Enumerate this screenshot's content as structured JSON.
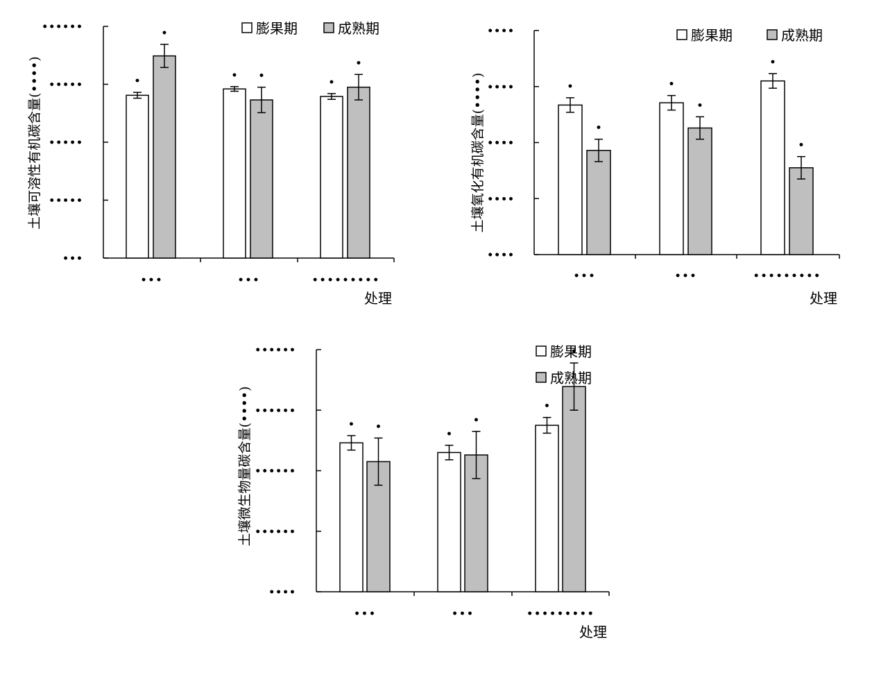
{
  "chart_data": [
    {
      "type": "bar",
      "title": "",
      "xlabel": "处理",
      "ylabel": "土壤可溶性有机碳含量(••••)",
      "ylim": [
        0,
        4
      ],
      "yticks": [
        0,
        1,
        2,
        3,
        4
      ],
      "ytick_labels": [
        "•••",
        "•••••",
        "•••••",
        "•••••",
        "••••••"
      ],
      "categories": [
        "•••",
        "•••",
        "•••••••••"
      ],
      "legend": "top-right",
      "series": [
        {
          "name": "膨果期",
          "color": "#ffffff",
          "values": [
            2.81,
            2.92,
            2.79
          ],
          "errors": [
            0.05,
            0.04,
            0.05
          ],
          "labels": [
            "•",
            "•",
            "•"
          ]
        },
        {
          "name": "成熟期",
          "color": "#bfbfbf",
          "values": [
            3.49,
            2.73,
            2.95
          ],
          "errors": [
            0.2,
            0.22,
            0.22
          ],
          "labels": [
            "•",
            "•",
            "•"
          ]
        }
      ]
    },
    {
      "type": "bar",
      "title": "",
      "xlabel": "处理",
      "ylabel": "土壤氧化有机碳含量(••••)",
      "ylim": [
        0,
        4
      ],
      "yticks": [
        0,
        1,
        2,
        3,
        4
      ],
      "ytick_labels": [
        "••••",
        "••••",
        "••••",
        "••••",
        "••••"
      ],
      "categories": [
        "•••",
        "•••",
        "•••••••••"
      ],
      "legend": "top-right",
      "series": [
        {
          "name": "膨果期",
          "color": "#ffffff",
          "values": [
            2.67,
            2.71,
            3.1
          ],
          "errors": [
            0.13,
            0.13,
            0.13
          ],
          "labels": [
            "•",
            "•",
            "•"
          ]
        },
        {
          "name": "成熟期",
          "color": "#bfbfbf",
          "values": [
            1.86,
            2.26,
            1.55
          ],
          "errors": [
            0.2,
            0.2,
            0.2
          ],
          "labels": [
            "•",
            "•",
            "•"
          ]
        }
      ]
    },
    {
      "type": "bar",
      "title": "",
      "xlabel": "处理",
      "ylabel": "土壤微生物量碳含量(••••)",
      "ylim": [
        0,
        400
      ],
      "yticks": [
        0,
        100,
        200,
        300,
        400
      ],
      "ytick_labels": [
        "••••",
        "••••••",
        "••••••",
        "••••••",
        "••••••"
      ],
      "categories": [
        "•••",
        "•••",
        "•••••••••"
      ],
      "legend": "top-right",
      "series": [
        {
          "name": "膨果期",
          "color": "#ffffff",
          "values": [
            246,
            230,
            275
          ],
          "errors": [
            12,
            12,
            13
          ],
          "labels": [
            "•",
            "•",
            "•"
          ]
        },
        {
          "name": "成熟期",
          "color": "#bfbfbf",
          "values": [
            215,
            226,
            339
          ],
          "errors": [
            39,
            39,
            39
          ],
          "labels": [
            "•",
            "•",
            "•"
          ]
        }
      ]
    }
  ]
}
